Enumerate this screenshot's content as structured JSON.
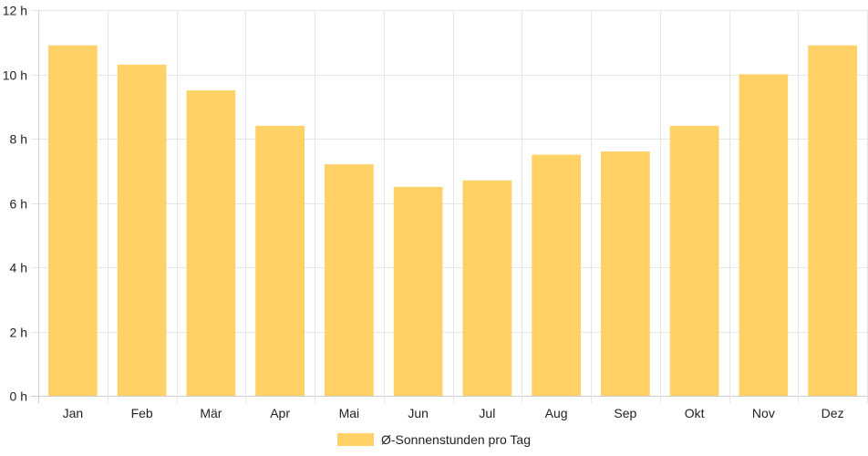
{
  "chart_data": {
    "type": "bar",
    "categories": [
      "Jan",
      "Feb",
      "Mär",
      "Apr",
      "Mai",
      "Jun",
      "Jul",
      "Aug",
      "Sep",
      "Okt",
      "Nov",
      "Dez"
    ],
    "series": [
      {
        "name": "Ø-Sonnenstunden pro Tag",
        "values": [
          10.9,
          10.3,
          9.5,
          8.4,
          7.2,
          6.5,
          6.7,
          7.5,
          7.6,
          8.4,
          10.0,
          10.9
        ],
        "color": "#ffd166"
      }
    ],
    "ylim": [
      0,
      12
    ],
    "yticks": [
      0,
      2,
      4,
      6,
      8,
      10,
      12
    ],
    "ytick_labels": [
      "0 h",
      "2 h",
      "4 h",
      "6 h",
      "8 h",
      "10 h",
      "12 h"
    ],
    "grid": true,
    "legend": "bottom-center"
  }
}
